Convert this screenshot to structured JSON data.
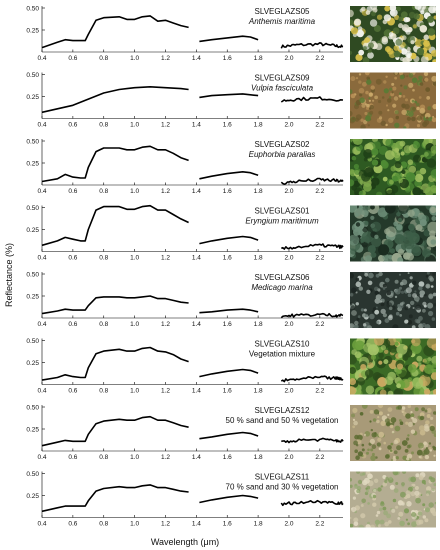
{
  "figure": {
    "xlabel": "Wavelength (μm)",
    "ylabel": "Reflectance (%)"
  },
  "chart_data": {
    "type": "line",
    "xlabel": "Wavelength (μm)",
    "ylabel": "Reflectance (%)",
    "xlim": [
      0.4,
      2.35
    ],
    "ylim": [
      0,
      0.5
    ],
    "x_ticks": [
      0.4,
      0.6,
      0.8,
      1.0,
      1.2,
      1.4,
      1.6,
      1.8,
      2.0,
      2.2
    ],
    "x_tick_labels": [
      "0.4",
      "0.6",
      "0.8",
      "1.0",
      "1.2",
      "1.4",
      "1.6",
      "1.8",
      "2.0",
      "2.2"
    ],
    "y_ticks": [
      0.25,
      0.5
    ],
    "y_tick_labels": [
      "0.25",
      "0.50"
    ],
    "band_gaps": [
      [
        1.35,
        1.42
      ],
      [
        1.82,
        1.95
      ]
    ],
    "panels": [
      {
        "code": "SLVEGLAZS05",
        "species": "Anthemis maritima",
        "photo": "white-daisy-flowers",
        "series": [
          [
            [
              0.4,
              0.05
            ],
            [
              0.5,
              0.11
            ],
            [
              0.55,
              0.14
            ],
            [
              0.6,
              0.13
            ],
            [
              0.65,
              0.13
            ],
            [
              0.68,
              0.13
            ],
            [
              0.7,
              0.2
            ],
            [
              0.75,
              0.36
            ],
            [
              0.8,
              0.39
            ],
            [
              0.9,
              0.4
            ],
            [
              0.95,
              0.37
            ],
            [
              1.0,
              0.37
            ],
            [
              1.05,
              0.4
            ],
            [
              1.1,
              0.41
            ],
            [
              1.15,
              0.35
            ],
            [
              1.2,
              0.36
            ],
            [
              1.25,
              0.33
            ],
            [
              1.3,
              0.3
            ],
            [
              1.35,
              0.28
            ]
          ],
          [
            [
              1.42,
              0.12
            ],
            [
              1.5,
              0.14
            ],
            [
              1.6,
              0.16
            ],
            [
              1.7,
              0.18
            ],
            [
              1.75,
              0.17
            ],
            [
              1.8,
              0.14
            ]
          ],
          [
            [
              1.95,
              0.06
            ],
            [
              2.05,
              0.08
            ],
            [
              2.2,
              0.09
            ],
            [
              2.3,
              0.07
            ],
            [
              2.35,
              0.06
            ]
          ]
        ]
      },
      {
        "code": "SLVEGLAZS09",
        "species": "Vulpia fasciculata",
        "photo": "dry-grass",
        "series": [
          [
            [
              0.4,
              0.07
            ],
            [
              0.5,
              0.11
            ],
            [
              0.6,
              0.15
            ],
            [
              0.7,
              0.22
            ],
            [
              0.8,
              0.29
            ],
            [
              0.9,
              0.33
            ],
            [
              1.0,
              0.35
            ],
            [
              1.1,
              0.36
            ],
            [
              1.2,
              0.35
            ],
            [
              1.3,
              0.34
            ],
            [
              1.35,
              0.33
            ]
          ],
          [
            [
              1.42,
              0.24
            ],
            [
              1.5,
              0.26
            ],
            [
              1.6,
              0.27
            ],
            [
              1.7,
              0.28
            ],
            [
              1.8,
              0.26
            ]
          ],
          [
            [
              1.95,
              0.2
            ],
            [
              2.05,
              0.22
            ],
            [
              2.2,
              0.23
            ],
            [
              2.35,
              0.21
            ]
          ]
        ]
      },
      {
        "code": "SLVEGLAZS02",
        "species": "Euphorbia paralias",
        "photo": "green-succulent-leaves",
        "series": [
          [
            [
              0.4,
              0.04
            ],
            [
              0.5,
              0.07
            ],
            [
              0.55,
              0.12
            ],
            [
              0.6,
              0.09
            ],
            [
              0.65,
              0.08
            ],
            [
              0.68,
              0.08
            ],
            [
              0.7,
              0.2
            ],
            [
              0.75,
              0.38
            ],
            [
              0.8,
              0.42
            ],
            [
              0.9,
              0.42
            ],
            [
              0.95,
              0.4
            ],
            [
              1.0,
              0.4
            ],
            [
              1.05,
              0.43
            ],
            [
              1.1,
              0.44
            ],
            [
              1.15,
              0.4
            ],
            [
              1.2,
              0.4
            ],
            [
              1.25,
              0.36
            ],
            [
              1.3,
              0.31
            ],
            [
              1.35,
              0.28
            ]
          ],
          [
            [
              1.42,
              0.07
            ],
            [
              1.5,
              0.1
            ],
            [
              1.6,
              0.13
            ],
            [
              1.7,
              0.15
            ],
            [
              1.75,
              0.14
            ],
            [
              1.8,
              0.11
            ]
          ],
          [
            [
              1.95,
              0.02
            ],
            [
              2.05,
              0.04
            ],
            [
              2.2,
              0.06
            ],
            [
              2.3,
              0.05
            ],
            [
              2.35,
              0.04
            ]
          ]
        ]
      },
      {
        "code": "SLVEGLAZS01",
        "species": "Eryngium maritimum",
        "photo": "spiny-blue-green-leaves",
        "series": [
          [
            [
              0.4,
              0.07
            ],
            [
              0.5,
              0.12
            ],
            [
              0.55,
              0.16
            ],
            [
              0.6,
              0.14
            ],
            [
              0.65,
              0.12
            ],
            [
              0.68,
              0.12
            ],
            [
              0.7,
              0.25
            ],
            [
              0.75,
              0.47
            ],
            [
              0.8,
              0.51
            ],
            [
              0.9,
              0.51
            ],
            [
              0.95,
              0.48
            ],
            [
              1.0,
              0.48
            ],
            [
              1.05,
              0.51
            ],
            [
              1.1,
              0.52
            ],
            [
              1.15,
              0.47
            ],
            [
              1.2,
              0.47
            ],
            [
              1.25,
              0.42
            ],
            [
              1.3,
              0.37
            ],
            [
              1.35,
              0.33
            ]
          ],
          [
            [
              1.42,
              0.09
            ],
            [
              1.5,
              0.12
            ],
            [
              1.6,
              0.15
            ],
            [
              1.7,
              0.17
            ],
            [
              1.75,
              0.16
            ],
            [
              1.8,
              0.13
            ]
          ],
          [
            [
              1.95,
              0.03
            ],
            [
              2.05,
              0.05
            ],
            [
              2.2,
              0.07
            ],
            [
              2.3,
              0.06
            ],
            [
              2.35,
              0.05
            ]
          ]
        ]
      },
      {
        "code": "SLVEGLAZS06",
        "species": "Medicago marina",
        "photo": "silvery-leaves",
        "series": [
          [
            [
              0.4,
              0.05
            ],
            [
              0.5,
              0.08
            ],
            [
              0.55,
              0.1
            ],
            [
              0.6,
              0.09
            ],
            [
              0.65,
              0.09
            ],
            [
              0.68,
              0.09
            ],
            [
              0.7,
              0.14
            ],
            [
              0.75,
              0.23
            ],
            [
              0.8,
              0.24
            ],
            [
              0.9,
              0.24
            ],
            [
              0.95,
              0.23
            ],
            [
              1.0,
              0.23
            ],
            [
              1.05,
              0.24
            ],
            [
              1.1,
              0.25
            ],
            [
              1.15,
              0.22
            ],
            [
              1.2,
              0.22
            ],
            [
              1.25,
              0.2
            ],
            [
              1.3,
              0.18
            ],
            [
              1.35,
              0.17
            ]
          ],
          [
            [
              1.42,
              0.06
            ],
            [
              1.5,
              0.07
            ],
            [
              1.6,
              0.09
            ],
            [
              1.7,
              0.1
            ],
            [
              1.75,
              0.09
            ],
            [
              1.8,
              0.07
            ]
          ],
          [
            [
              1.95,
              0.02
            ],
            [
              2.05,
              0.03
            ],
            [
              2.2,
              0.04
            ],
            [
              2.3,
              0.03
            ],
            [
              2.35,
              0.03
            ]
          ]
        ]
      },
      {
        "code": "SLVEGLAZS10",
        "species": "Vegetation mixture",
        "photo": "mixed-vegetation",
        "series": [
          [
            [
              0.4,
              0.05
            ],
            [
              0.5,
              0.08
            ],
            [
              0.55,
              0.11
            ],
            [
              0.6,
              0.09
            ],
            [
              0.65,
              0.08
            ],
            [
              0.68,
              0.08
            ],
            [
              0.7,
              0.19
            ],
            [
              0.75,
              0.35
            ],
            [
              0.8,
              0.38
            ],
            [
              0.9,
              0.4
            ],
            [
              0.95,
              0.38
            ],
            [
              1.0,
              0.38
            ],
            [
              1.05,
              0.41
            ],
            [
              1.1,
              0.42
            ],
            [
              1.15,
              0.38
            ],
            [
              1.2,
              0.37
            ],
            [
              1.25,
              0.34
            ],
            [
              1.3,
              0.29
            ],
            [
              1.35,
              0.26
            ]
          ],
          [
            [
              1.42,
              0.09
            ],
            [
              1.5,
              0.12
            ],
            [
              1.6,
              0.15
            ],
            [
              1.7,
              0.17
            ],
            [
              1.75,
              0.16
            ],
            [
              1.8,
              0.13
            ]
          ],
          [
            [
              1.95,
              0.04
            ],
            [
              2.05,
              0.06
            ],
            [
              2.2,
              0.08
            ],
            [
              2.3,
              0.07
            ],
            [
              2.35,
              0.06
            ]
          ]
        ]
      },
      {
        "code": "SLVEGLAZS12",
        "species": "50 % sand and 50 % vegetation",
        "photo": "sand-and-vegetation",
        "series": [
          [
            [
              0.4,
              0.06
            ],
            [
              0.5,
              0.1
            ],
            [
              0.55,
              0.12
            ],
            [
              0.6,
              0.11
            ],
            [
              0.65,
              0.11
            ],
            [
              0.68,
              0.11
            ],
            [
              0.7,
              0.19
            ],
            [
              0.75,
              0.31
            ],
            [
              0.8,
              0.34
            ],
            [
              0.9,
              0.36
            ],
            [
              0.95,
              0.35
            ],
            [
              1.0,
              0.35
            ],
            [
              1.05,
              0.38
            ],
            [
              1.1,
              0.39
            ],
            [
              1.15,
              0.35
            ],
            [
              1.2,
              0.35
            ],
            [
              1.25,
              0.32
            ],
            [
              1.3,
              0.29
            ],
            [
              1.35,
              0.27
            ]
          ],
          [
            [
              1.42,
              0.14
            ],
            [
              1.5,
              0.16
            ],
            [
              1.6,
              0.19
            ],
            [
              1.7,
              0.21
            ],
            [
              1.75,
              0.2
            ],
            [
              1.8,
              0.17
            ]
          ],
          [
            [
              1.95,
              0.1
            ],
            [
              2.05,
              0.12
            ],
            [
              2.2,
              0.13
            ],
            [
              2.3,
              0.12
            ],
            [
              2.35,
              0.11
            ]
          ]
        ]
      },
      {
        "code": "SLVEGLAZS11",
        "species": "70 % sand and 30 % vegetation",
        "photo": "sparse-vegetation-on-sand",
        "series": [
          [
            [
              0.4,
              0.07
            ],
            [
              0.5,
              0.11
            ],
            [
              0.55,
              0.13
            ],
            [
              0.6,
              0.13
            ],
            [
              0.65,
              0.13
            ],
            [
              0.68,
              0.13
            ],
            [
              0.7,
              0.19
            ],
            [
              0.75,
              0.3
            ],
            [
              0.8,
              0.33
            ],
            [
              0.9,
              0.35
            ],
            [
              0.95,
              0.34
            ],
            [
              1.0,
              0.34
            ],
            [
              1.05,
              0.36
            ],
            [
              1.1,
              0.37
            ],
            [
              1.15,
              0.34
            ],
            [
              1.2,
              0.34
            ],
            [
              1.25,
              0.32
            ],
            [
              1.3,
              0.3
            ],
            [
              1.35,
              0.29
            ]
          ],
          [
            [
              1.42,
              0.17
            ],
            [
              1.5,
              0.2
            ],
            [
              1.6,
              0.23
            ],
            [
              1.7,
              0.25
            ],
            [
              1.75,
              0.24
            ],
            [
              1.8,
              0.22
            ]
          ],
          [
            [
              1.95,
              0.15
            ],
            [
              2.05,
              0.17
            ],
            [
              2.2,
              0.18
            ],
            [
              2.3,
              0.17
            ],
            [
              2.35,
              0.16
            ]
          ]
        ]
      }
    ]
  }
}
